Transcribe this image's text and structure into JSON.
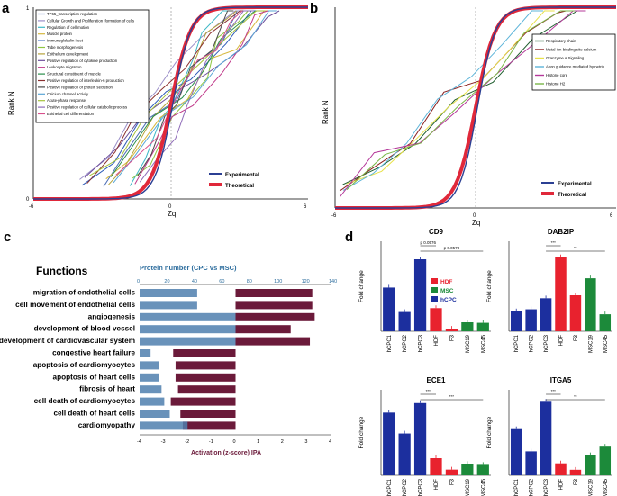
{
  "chart_data": [
    {
      "panel": "a",
      "type": "line",
      "xlabel": "Zq",
      "ylabel": "Rank N",
      "xlim": [
        -6,
        6
      ],
      "ylim": [
        0,
        1
      ],
      "xticks": [
        "-6",
        "0",
        "6"
      ],
      "yticks": [
        "0",
        "1"
      ],
      "gene_sets": [
        {
          "name": "TP65_transcription regulation",
          "color": "#4d6fb5"
        },
        {
          "name": "Cellular Growth and Proliferation_formation of cells",
          "color": "#9b8fc9"
        },
        {
          "name": "Regulation of cell motion",
          "color": "#3cb8c6"
        },
        {
          "name": "Muscle protein",
          "color": "#d6b83e"
        },
        {
          "name": "Immunoglobulin I-set",
          "color": "#2e5cb8"
        },
        {
          "name": "Tube morphogenesis",
          "color": "#8ec641"
        },
        {
          "name": "Epithelium development",
          "color": "#b5a33a"
        },
        {
          "name": "Positive regulation of cytokine production",
          "color": "#6b4c9a"
        },
        {
          "name": "Leukocyte migration",
          "color": "#c03a8a"
        },
        {
          "name": "Structural constituent of muscle",
          "color": "#2a8f4b"
        },
        {
          "name": "Positive regulation of interleukin-6 production",
          "color": "#8a2f2f"
        },
        {
          "name": "Positive regulation of protein secretion",
          "color": "#4a4a4a"
        },
        {
          "name": "Calcium channel activity",
          "color": "#5aa6d6"
        },
        {
          "name": "Acute-phase response",
          "color": "#a6c23a"
        },
        {
          "name": "Positive regulation of cellular catabolic process",
          "color": "#8e6bb8"
        },
        {
          "name": "Epithelial cell differentiation",
          "color": "#d94f8c"
        }
      ],
      "legend": [
        {
          "name": "Experimental",
          "color": "#2b3f93"
        },
        {
          "name": "Theoretical",
          "color": "#e0283a"
        }
      ]
    },
    {
      "panel": "b",
      "type": "line",
      "xlabel": "Zq",
      "ylabel": "Rank N",
      "xlim": [
        -6,
        6
      ],
      "ylim": [
        0,
        1
      ],
      "xticks": [
        "-6",
        "0",
        "6"
      ],
      "gene_sets": [
        {
          "name": "Respiratory chain",
          "color": "#1f5e2e"
        },
        {
          "name": "Metal ion-binding site  calcium",
          "color": "#8a1f1f"
        },
        {
          "name": "Granzyme A Signaling",
          "color": "#e8e24a"
        },
        {
          "name": "Axon guidance mediated by netrin",
          "color": "#5cb4d9"
        },
        {
          "name": "Histone core",
          "color": "#b5389a"
        },
        {
          "name": "Histone H2",
          "color": "#7ab648"
        }
      ],
      "legend": [
        {
          "name": "Experimental",
          "color": "#2b3f93"
        },
        {
          "name": "Theoretical",
          "color": "#e0283a"
        }
      ]
    },
    {
      "panel": "c",
      "type": "bar",
      "title": "Functions",
      "top_axis_label": "Protein number  (CPC vs MSC)",
      "top_ticks": [
        "0",
        "20",
        "40",
        "60",
        "80",
        "100",
        "120",
        "140"
      ],
      "top_range": [
        0,
        140
      ],
      "xlabel": "Activation (z-score) IPA",
      "xticks": [
        "-4",
        "-3",
        "-2",
        "-1",
        "0",
        "1",
        "2",
        "3",
        "4"
      ],
      "xlim": [
        -4,
        4
      ],
      "categories": [
        "migration of endothelial cells",
        "cell movement of endothelial cells",
        "angiogenesis",
        "development of blood vessel",
        "development of cardiovascular system",
        "congestive heart failure",
        "apoptosis of cardiomyocytes",
        "apoptosis of heart cells",
        "fibrosis of heart",
        "cell death of cardiomyocytes",
        "cell death of heart cells",
        "cardiomyopathy"
      ],
      "protein_number": [
        42,
        42,
        70,
        70,
        70,
        8,
        14,
        14,
        16,
        18,
        22,
        35
      ],
      "zscore": [
        3.2,
        3.2,
        3.3,
        2.3,
        3.1,
        -2.6,
        -2.5,
        -2.5,
        -2.4,
        -2.7,
        -2.3,
        -2.2
      ]
    },
    {
      "panel": "d",
      "type": "bar",
      "ylabel": "Fold change",
      "categories": [
        "hCPC1",
        "hCPC2",
        "hCPC3",
        "HDF",
        "F3",
        "MSC19",
        "MSC45"
      ],
      "group_colors": {
        "hCPC": "#1c2f9e",
        "HDF": "#e8222e",
        "MSC": "#1c8a3a"
      },
      "legend": [
        "HDF",
        "MSC",
        "hCPC"
      ],
      "genes": [
        {
          "name": "CD9",
          "values": [
            17,
            7.5,
            28,
            9,
            1,
            3.5,
            3.3
          ],
          "ymax": 35,
          "annotations": [
            "p 0.0576",
            "p 0.0578"
          ]
        },
        {
          "name": "DAB2IP",
          "values": [
            1.0,
            1.1,
            1.65,
            3.7,
            1.8,
            2.65,
            0.85
          ],
          "ymax": 4.5,
          "annotations": [
            "***",
            "**"
          ]
        },
        {
          "name": "ECE1",
          "values": [
            33,
            22,
            38,
            9,
            3,
            6,
            5.5
          ],
          "ymax": 45,
          "annotations": [
            "***",
            "***"
          ]
        },
        {
          "name": "ITGA5",
          "values": [
            108,
            56,
            172,
            28,
            13,
            47,
            67
          ],
          "ymax": 200,
          "annotations": [
            "***",
            "**"
          ]
        }
      ]
    }
  ],
  "panel_letters": [
    "a",
    "b",
    "c",
    "d"
  ]
}
